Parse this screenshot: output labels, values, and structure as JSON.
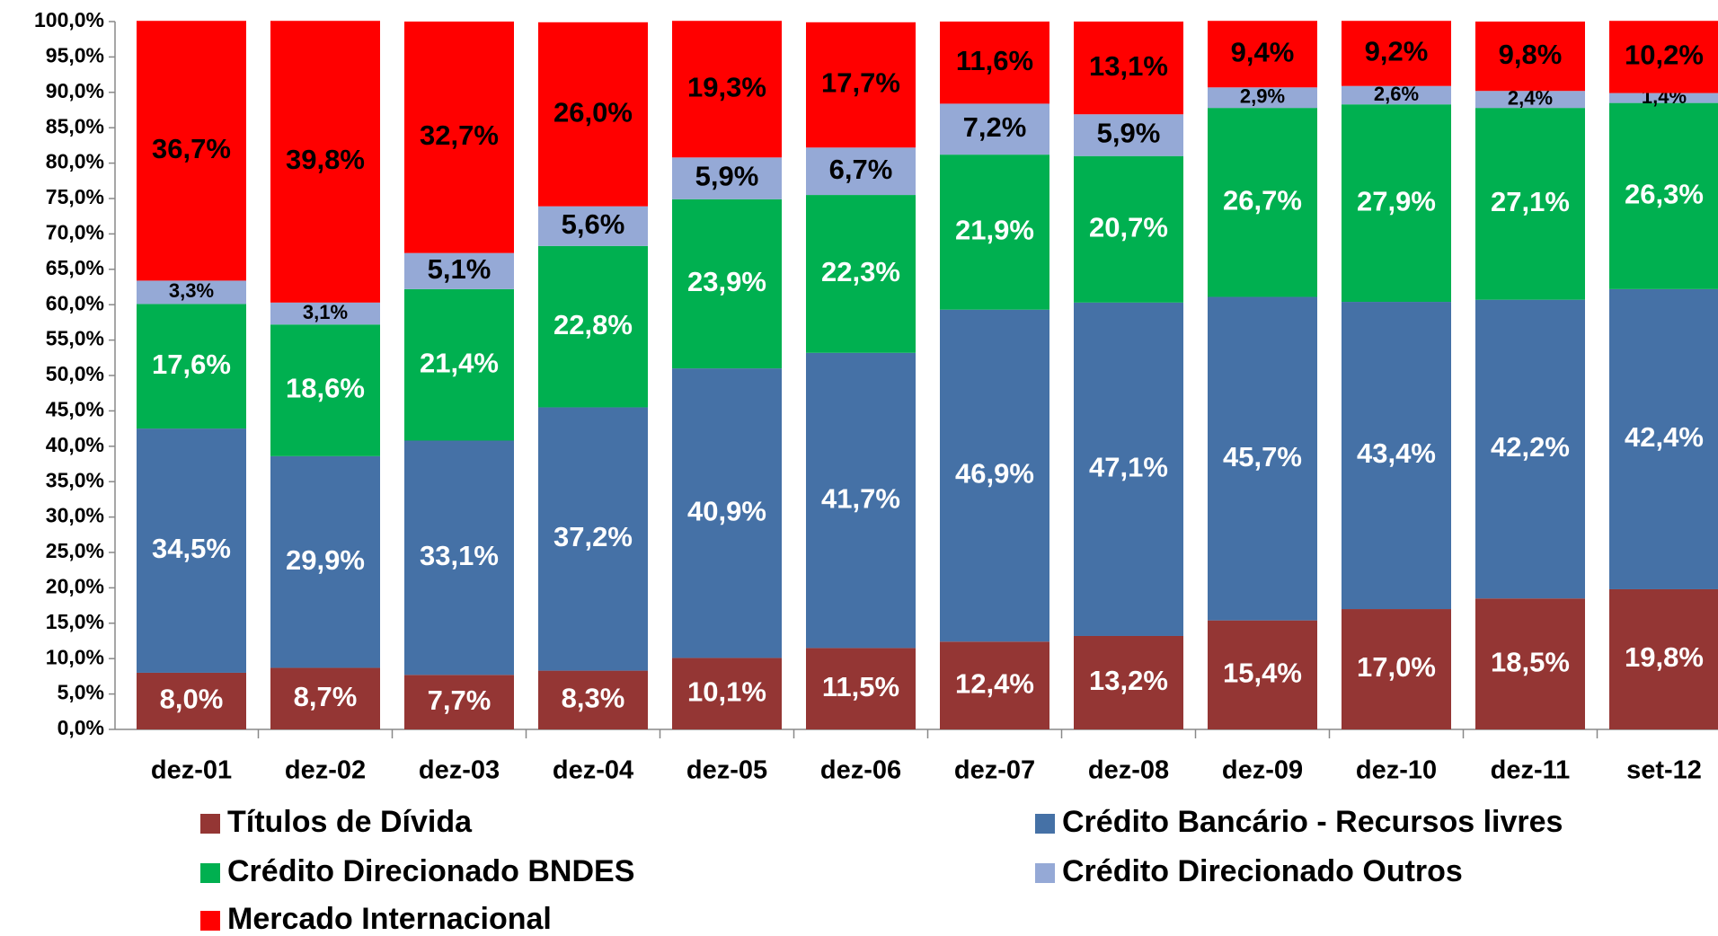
{
  "chart_data": {
    "type": "stacked_bar",
    "categories": [
      "dez-01",
      "dez-02",
      "dez-03",
      "dez-04",
      "dez-05",
      "dez-06",
      "dez-07",
      "dez-08",
      "dez-09",
      "dez-10",
      "dez-11",
      "set-12"
    ],
    "series": [
      {
        "name": "Títulos de Dívida",
        "color": "#943634",
        "label_color": "#ffffff",
        "values": [
          8.0,
          8.7,
          7.7,
          8.3,
          10.1,
          11.5,
          12.4,
          13.2,
          15.4,
          17.0,
          18.5,
          19.8
        ],
        "value_labels": [
          "8,0%",
          "8,7%",
          "7,7%",
          "8,3%",
          "10,1%",
          "11,5%",
          "12,4%",
          "13,2%",
          "15,4%",
          "17,0%",
          "18,5%",
          "19,8%"
        ]
      },
      {
        "name": "Crédito Bancário - Recursos livres",
        "color": "#4571a6",
        "label_color": "#ffffff",
        "values": [
          34.5,
          29.9,
          33.1,
          37.2,
          40.9,
          41.7,
          46.9,
          47.1,
          45.7,
          43.4,
          42.2,
          42.4
        ],
        "value_labels": [
          "34,5%",
          "29,9%",
          "33,1%",
          "37,2%",
          "40,9%",
          "41,7%",
          "46,9%",
          "47,1%",
          "45,7%",
          "43,4%",
          "42,2%",
          "42,4%"
        ]
      },
      {
        "name": "Crédito Direcionado  BNDES",
        "color": "#00b050",
        "label_color": "#ffffff",
        "values": [
          17.6,
          18.6,
          21.4,
          22.8,
          23.9,
          22.3,
          21.9,
          20.7,
          26.7,
          27.9,
          27.1,
          26.3
        ],
        "value_labels": [
          "17,6%",
          "18,6%",
          "21,4%",
          "22,8%",
          "23,9%",
          "22,3%",
          "21,9%",
          "20,7%",
          "26,7%",
          "27,9%",
          "27,1%",
          "26,3%"
        ]
      },
      {
        "name": "Crédito Direcionado Outros",
        "color": "#95a9d6",
        "label_color": "#000000",
        "values": [
          3.3,
          3.1,
          5.1,
          5.6,
          5.9,
          6.7,
          7.2,
          5.9,
          2.9,
          2.6,
          2.4,
          1.4
        ],
        "value_labels": [
          "3,3%",
          "3,1%",
          "5,1%",
          "5,6%",
          "5,9%",
          "6,7%",
          "7,2%",
          "5,9%",
          "2,9%",
          "2,6%",
          "2,4%",
          "1,4%"
        ]
      },
      {
        "name": "Mercado Internacional",
        "color": "#ff0000",
        "label_color": "#000000",
        "values": [
          36.7,
          39.8,
          32.7,
          26.0,
          19.3,
          17.7,
          11.6,
          13.1,
          9.4,
          9.2,
          9.8,
          10.2
        ],
        "value_labels": [
          "36,7%",
          "39,8%",
          "32,7%",
          "26,0%",
          "19,3%",
          "17,7%",
          "11,6%",
          "13,1%",
          "9,4%",
          "9,2%",
          "9,8%",
          "10,2%"
        ]
      }
    ],
    "ylim": [
      0,
      100
    ],
    "yticks": [
      {
        "value": 0,
        "label": "0,0%"
      },
      {
        "value": 5,
        "label": "5,0%"
      },
      {
        "value": 10,
        "label": "10,0%"
      },
      {
        "value": 15,
        "label": "15,0%"
      },
      {
        "value": 20,
        "label": "20,0%"
      },
      {
        "value": 25,
        "label": "25,0%"
      },
      {
        "value": 30,
        "label": "30,0%"
      },
      {
        "value": 35,
        "label": "35,0%"
      },
      {
        "value": 40,
        "label": "40,0%"
      },
      {
        "value": 45,
        "label": "45,0%"
      },
      {
        "value": 50,
        "label": "50,0%"
      },
      {
        "value": 55,
        "label": "55,0%"
      },
      {
        "value": 60,
        "label": "60,0%"
      },
      {
        "value": 65,
        "label": "65,0%"
      },
      {
        "value": 70,
        "label": "70,0%"
      },
      {
        "value": 75,
        "label": "75,0%"
      },
      {
        "value": 80,
        "label": "80,0%"
      },
      {
        "value": 85,
        "label": "85,0%"
      },
      {
        "value": 90,
        "label": "90,0%"
      },
      {
        "value": 95,
        "label": "95,0%"
      },
      {
        "value": 100,
        "label": "100,0%"
      }
    ],
    "grid": false,
    "legend": "bottom"
  }
}
